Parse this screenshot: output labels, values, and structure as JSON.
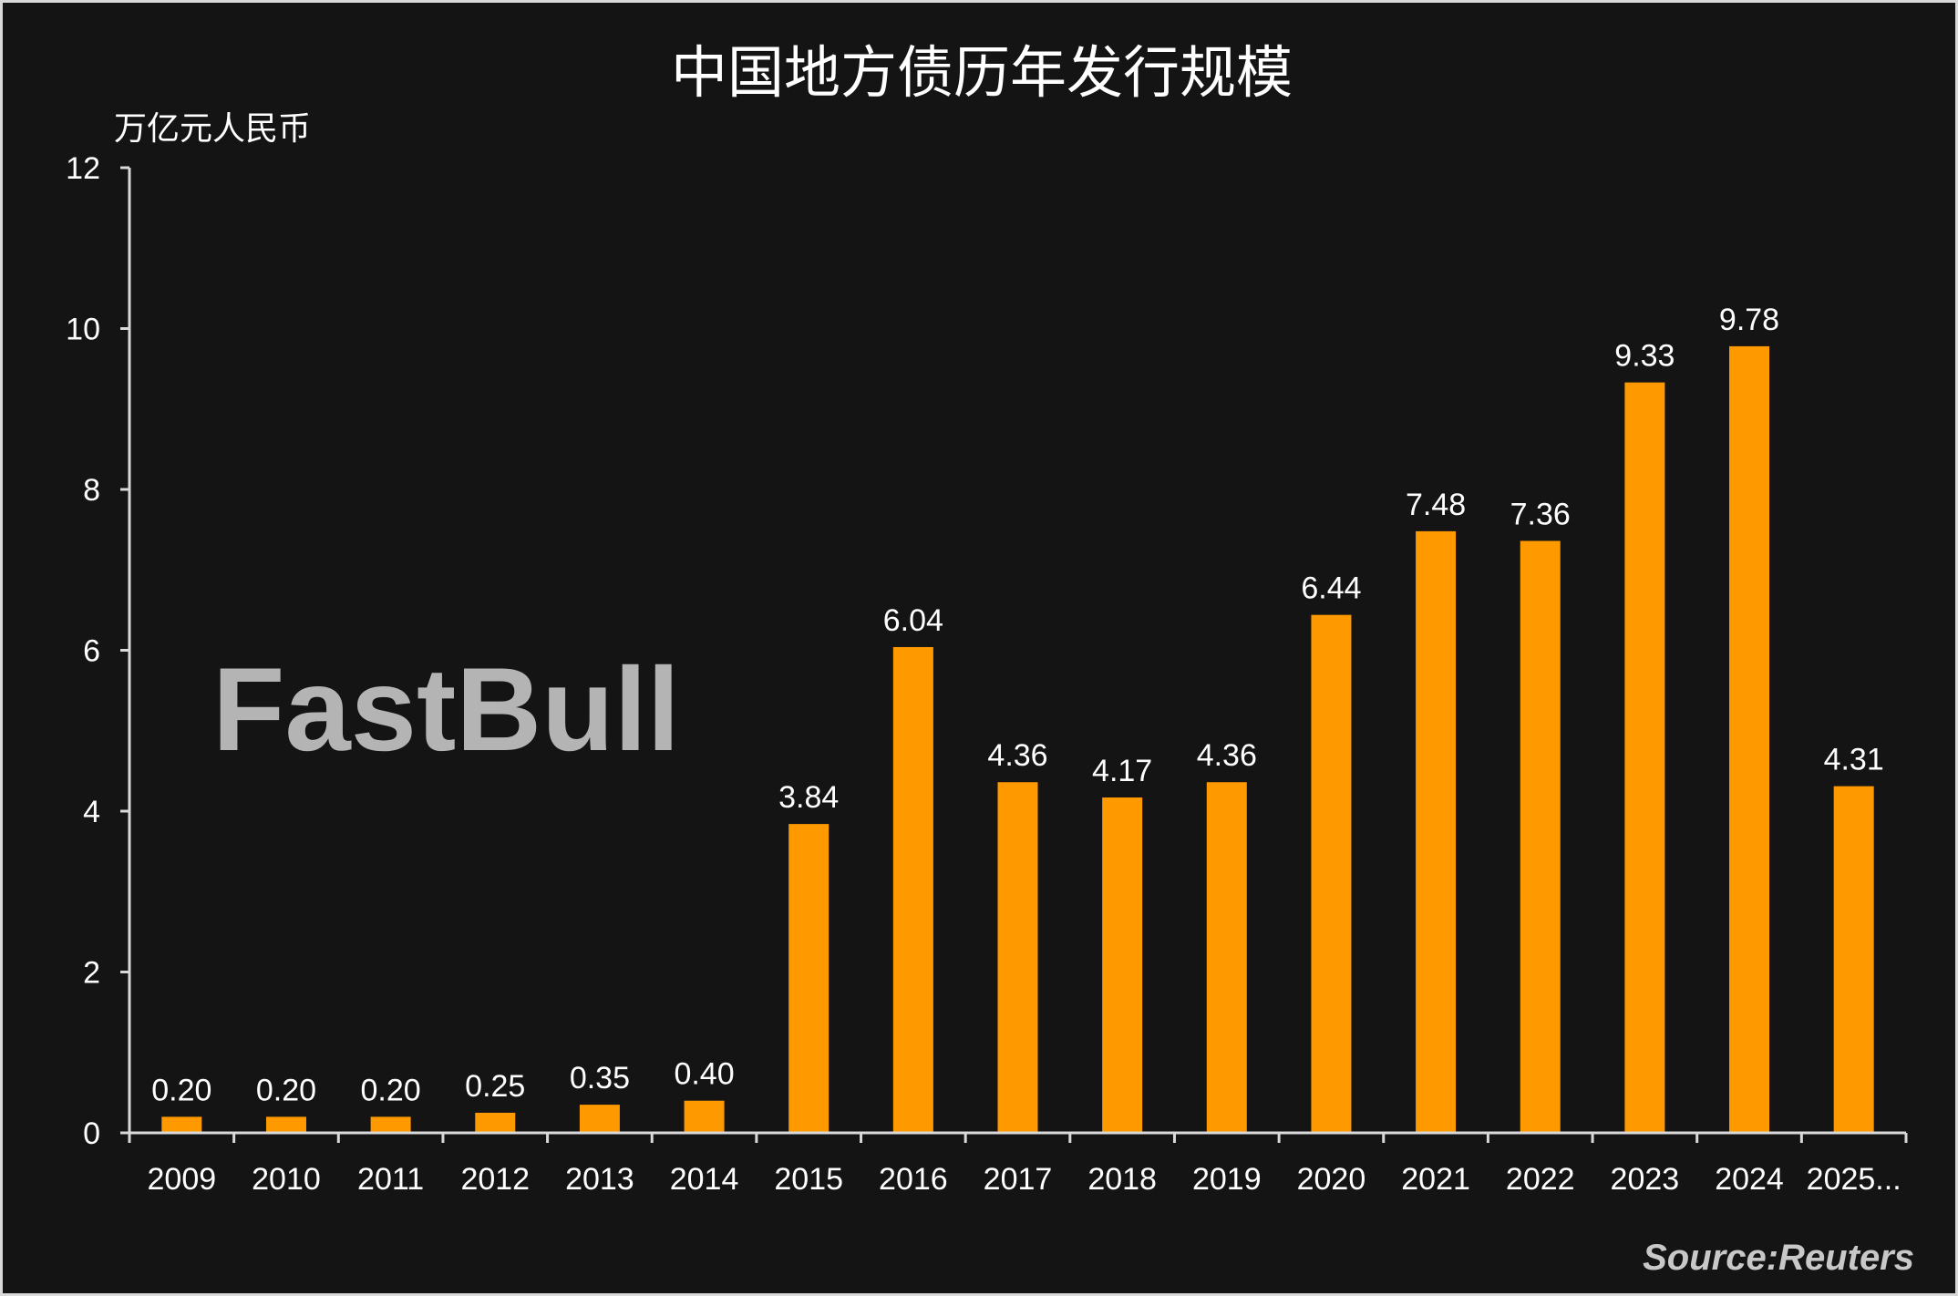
{
  "chart_data": {
    "type": "bar",
    "title": "中国地方债历年发行规模",
    "ylabel": "万亿元人民币",
    "xlabel": "",
    "categories": [
      "2009",
      "2010",
      "2011",
      "2012",
      "2013",
      "2014",
      "2015",
      "2016",
      "2017",
      "2018",
      "2019",
      "2020",
      "2021",
      "2022",
      "2023",
      "2024",
      "2025..."
    ],
    "values": [
      0.2,
      0.2,
      0.2,
      0.25,
      0.35,
      0.4,
      3.84,
      6.04,
      4.36,
      4.17,
      4.36,
      6.44,
      7.48,
      7.36,
      9.33,
      9.78,
      4.31
    ],
    "data_labels": [
      "0.20",
      "0.20",
      "0.20",
      "0.25",
      "0.35",
      "0.40",
      "3.84",
      "6.04",
      "4.36",
      "4.17",
      "4.36",
      "6.44",
      "7.48",
      "7.36",
      "9.33",
      "9.78",
      "4.31"
    ],
    "ylim": [
      0,
      12
    ],
    "yticks": [
      "0",
      "2",
      "4",
      "6",
      "8",
      "10",
      "12"
    ],
    "grid": false,
    "legend": "none",
    "colors": {
      "bar": "#ff9900",
      "background": "#141414",
      "text": "#ffffff"
    }
  },
  "source": "Source:Reuters",
  "watermark": "FastBull"
}
